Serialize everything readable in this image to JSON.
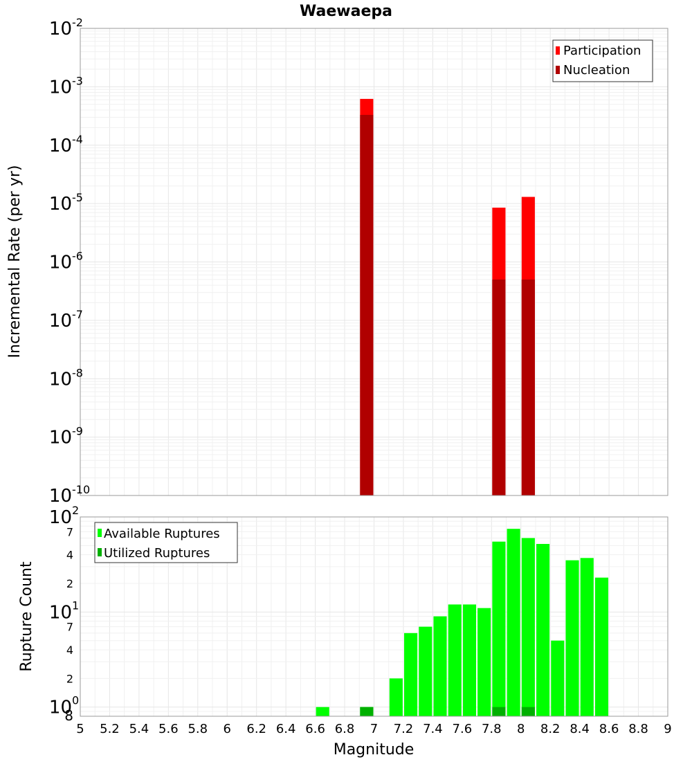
{
  "title": "Waewaepa",
  "chart_data": [
    {
      "type": "bar",
      "ylabel": "Incremental Rate (per yr)",
      "xlabel": "",
      "ylim": [
        1e-10,
        0.01
      ],
      "yscale": "log",
      "xlim": [
        5,
        9
      ],
      "bar_width": 0.09,
      "y_ticks": [
        "10",
        "10",
        "10",
        "10",
        "10",
        "10",
        "10",
        "10",
        "10"
      ],
      "y_tick_exponents": [
        "-10",
        "-9",
        "-8",
        "-7",
        "-6",
        "-5",
        "-4",
        "-3",
        "-2"
      ],
      "legend_position": "top-right",
      "legend": [
        "Participation",
        "Nucleation"
      ],
      "colors": {
        "Participation": "#ff0000",
        "Nucleation": "#b00000"
      },
      "series": [
        {
          "name": "Participation",
          "x": [
            6.95,
            7.85,
            8.05
          ],
          "values": [
            0.00062,
            8.5e-06,
            1.3e-05
          ]
        },
        {
          "name": "Nucleation",
          "x": [
            6.95,
            7.85,
            8.05
          ],
          "values": [
            0.00033,
            5e-07,
            5e-07
          ]
        }
      ]
    },
    {
      "type": "bar",
      "ylabel": "Rupture Count",
      "xlabel": "Magnitude",
      "yscale": "log",
      "ylim": [
        0.8,
        100
      ],
      "xlim": [
        5,
        9
      ],
      "bar_width": 0.09,
      "x_ticks": [
        "5",
        "5.2",
        "5.4",
        "5.6",
        "5.8",
        "6",
        "6.2",
        "6.4",
        "6.6",
        "6.8",
        "7",
        "7.2",
        "7.4",
        "7.6",
        "7.8",
        "8",
        "8.2",
        "8.4",
        "8.6",
        "8.8",
        "9"
      ],
      "y_tick_labels": {
        "major": [
          "10",
          "10",
          "10"
        ],
        "major_exponents": [
          "0",
          "1",
          "2"
        ],
        "minor": [
          "8",
          "2",
          "4",
          "7",
          "2",
          "4",
          "7"
        ]
      },
      "legend_position": "top-left",
      "legend": [
        "Available Ruptures",
        "Utilized Ruptures"
      ],
      "colors": {
        "Available Ruptures": "#00ff00",
        "Utilized Ruptures": "#00b000"
      },
      "series": [
        {
          "name": "Available Ruptures",
          "x": [
            6.65,
            6.95,
            7.15,
            7.25,
            7.35,
            7.45,
            7.55,
            7.65,
            7.75,
            7.85,
            7.95,
            8.05,
            8.15,
            8.25,
            8.35,
            8.45,
            8.55
          ],
          "values": [
            1,
            1,
            2,
            6,
            7,
            9,
            12,
            12,
            11,
            55,
            75,
            60,
            52,
            5,
            35,
            37,
            23
          ]
        },
        {
          "name": "Utilized Ruptures",
          "x": [
            6.95,
            7.85,
            8.05
          ],
          "values": [
            1,
            1,
            1
          ]
        }
      ]
    }
  ]
}
